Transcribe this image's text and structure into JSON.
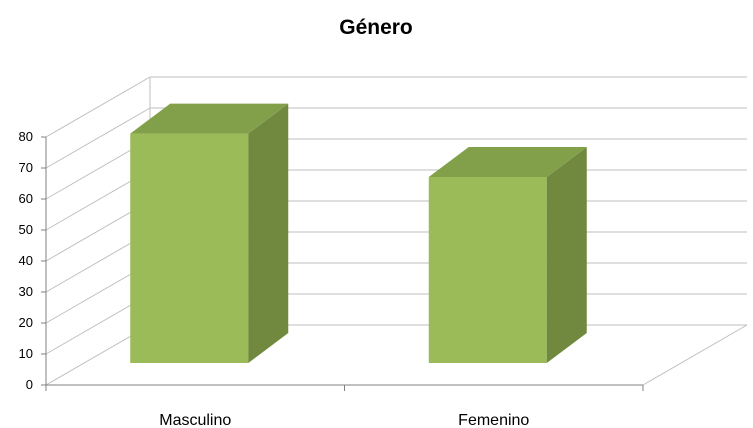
{
  "chart_data": {
    "type": "bar",
    "title": "Género",
    "categories": [
      "Masculino",
      "Femenino"
    ],
    "values": [
      74,
      60
    ],
    "ylim": [
      0,
      80
    ],
    "yticks": [
      0,
      10,
      20,
      30,
      40,
      50,
      60,
      70,
      80
    ],
    "xlabel": "",
    "ylabel": "",
    "grid": true,
    "legend": "none",
    "style": "3d-column",
    "colors": {
      "front": "#9bbb59",
      "side": "#71893f",
      "top": "#82a04a",
      "grid": "#bfbfbf",
      "axis": "#808080"
    }
  }
}
